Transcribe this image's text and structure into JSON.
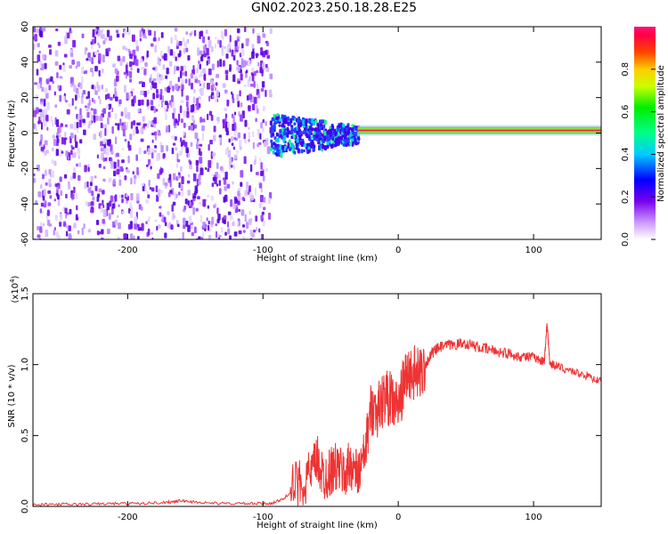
{
  "figure": {
    "title": "GN02.2023.250.18.28.E25"
  },
  "chart_data": [
    {
      "type": "heatmap",
      "xlabel": "Height of straight line (km)",
      "ylabel": "Frequency (Hz)",
      "xlim": [
        -270,
        150
      ],
      "ylim": [
        -60,
        60
      ],
      "xticks": [
        -200,
        -100,
        0,
        100
      ],
      "xtick_labels": [
        "-200",
        "-100",
        "0",
        "100"
      ],
      "yticks": [
        -60,
        -40,
        -20,
        0,
        20,
        40,
        60
      ],
      "ytick_labels": [
        "-60",
        "-40",
        "-20",
        "0",
        "20",
        "40",
        "60"
      ],
      "colorbar": {
        "label": "Normalized spectral amplitude",
        "range": [
          0,
          1
        ],
        "ticks": [
          0.0,
          0.2,
          0.4,
          0.6,
          0.8
        ],
        "tick_labels": [
          "0.0",
          "0.2",
          "0.4",
          "0.6",
          "0.8"
        ]
      },
      "regions": [
        {
          "name": "noise",
          "x_range": [
            -270,
            -95
          ],
          "freq_range": [
            -60,
            60
          ],
          "amplitude": 0.2
        },
        {
          "name": "turbulent",
          "x_range": [
            -95,
            -30
          ],
          "freq_range": [
            -12,
            12
          ],
          "amplitude": 0.4
        },
        {
          "name": "carrier",
          "x_range": [
            -30,
            150
          ],
          "freq_center": 1.5,
          "amplitude": 0.95
        }
      ]
    },
    {
      "type": "line",
      "xlabel": "Height of straight line (km)",
      "ylabel": "SNR (10 * v/v)",
      "scale_label": "(x10",
      "scale_exponent": "4",
      "scale_suffix": ")",
      "xlim": [
        -270,
        150
      ],
      "ylim": [
        0,
        1.5
      ],
      "xticks": [
        -200,
        -100,
        0,
        100
      ],
      "xtick_labels": [
        "-200",
        "-100",
        "0",
        "100"
      ],
      "yticks": [
        0.0,
        0.5,
        1.0,
        1.5
      ],
      "ytick_labels": [
        "0.0",
        "0.5",
        "1.0",
        "1.5"
      ],
      "color": "#ee3333",
      "x": [
        -270,
        -250,
        -230,
        -210,
        -190,
        -170,
        -160,
        -150,
        -130,
        -110,
        -95,
        -85,
        -75,
        -65,
        -60,
        -55,
        -50,
        -45,
        -40,
        -35,
        -30,
        -25,
        -20,
        -15,
        -10,
        -5,
        0,
        5,
        10,
        15,
        20,
        25,
        30,
        40,
        50,
        60,
        70,
        80,
        90,
        100,
        105,
        108,
        110,
        112,
        115,
        120,
        130,
        140,
        150
      ],
      "y": [
        0.01,
        0.015,
        0.015,
        0.02,
        0.02,
        0.03,
        0.04,
        0.03,
        0.02,
        0.02,
        0.02,
        0.05,
        0.15,
        0.22,
        0.33,
        0.2,
        0.25,
        0.28,
        0.22,
        0.3,
        0.22,
        0.35,
        0.7,
        0.68,
        0.78,
        0.75,
        0.7,
        0.9,
        0.95,
        0.92,
        1.0,
        1.08,
        1.12,
        1.14,
        1.15,
        1.12,
        1.1,
        1.08,
        1.06,
        1.05,
        1.03,
        1.02,
        1.3,
        1.0,
        1.0,
        0.98,
        0.95,
        0.92,
        0.88
      ]
    }
  ]
}
